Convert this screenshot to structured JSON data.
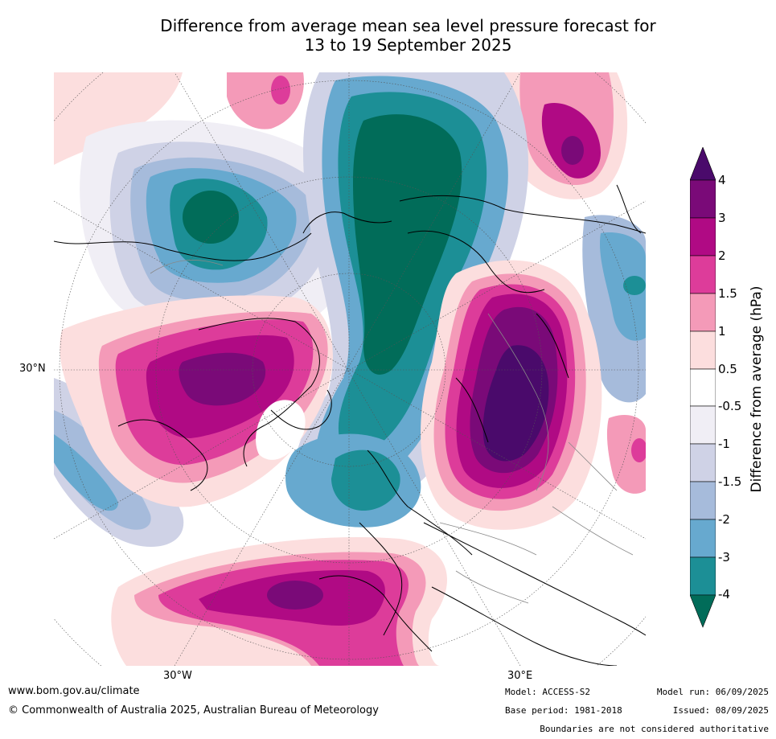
{
  "title_line1": "Difference from average mean sea level pressure forecast for",
  "title_line2": "13 to 19 September 2025",
  "map": {
    "lat_label": "30°N",
    "lon_label_west": "30°W",
    "lon_label_east": "30°E"
  },
  "colorbar": {
    "label": "Difference from average (hPa)",
    "ticks": [
      "4",
      "3",
      "2",
      "1.5",
      "1",
      "0.5",
      "-0.5",
      "-1",
      "-1.5",
      "-2",
      "-3",
      "-4"
    ],
    "colors": {
      "above_4": "#4a0a6b",
      "3_to_4": "#7a0a78",
      "2_to_3": "#b00a84",
      "1.5_to_2": "#dd3c9a",
      "1_to_1.5": "#f49ab8",
      "0.5_to_1": "#fcdede",
      "-0.5_to_0.5": "#ffffff",
      "-1_to_-0.5": "#f0eef5",
      "-1.5_to_-1": "#cfd2e6",
      "-2_to_-1.5": "#a6bbdb",
      "-3_to_-2": "#67a9cf",
      "-4_to_-3": "#1c8f96",
      "below_-4": "#016c59"
    }
  },
  "footer": {
    "website": "www.bom.gov.au/climate",
    "copyright": "© Commonwealth of Australia 2025, Australian Bureau of Meteorology",
    "model": "Model: ACCESS-S2",
    "base_period": "Base period: 1981-2018",
    "model_run": "Model run: 06/09/2025",
    "issued": "Issued: 08/09/2025",
    "disclaimer": "Boundaries are not considered authoritative"
  }
}
